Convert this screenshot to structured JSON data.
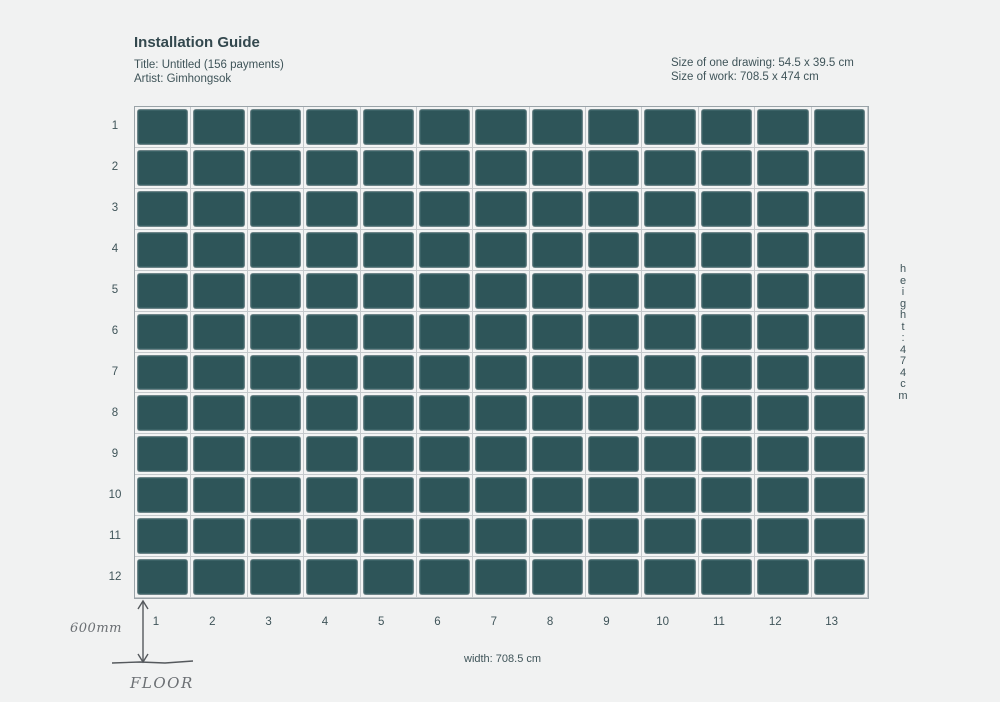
{
  "guide": {
    "title": "Installation Guide",
    "work_title": "Title: Untitled (156 payments)",
    "artist": "Artist: Gimhongsok",
    "drawing_size": "Size of one drawing: 54.5 x 39.5 cm",
    "work_size": "Size of work: 708.5 x 474 cm"
  },
  "grid": {
    "rows": [
      "1",
      "2",
      "3",
      "4",
      "5",
      "6",
      "7",
      "8",
      "9",
      "10",
      "11",
      "12"
    ],
    "columns": [
      "1",
      "2",
      "3",
      "4",
      "5",
      "6",
      "7",
      "8",
      "9",
      "10",
      "11",
      "12",
      "13"
    ],
    "panel_color": "#2e5559"
  },
  "dimensions": {
    "width_label": "width: 708.5 cm",
    "height_label": "height: 474 cm"
  },
  "annotations": {
    "offset_note": "600mm",
    "floor_note": "FLOOR"
  }
}
